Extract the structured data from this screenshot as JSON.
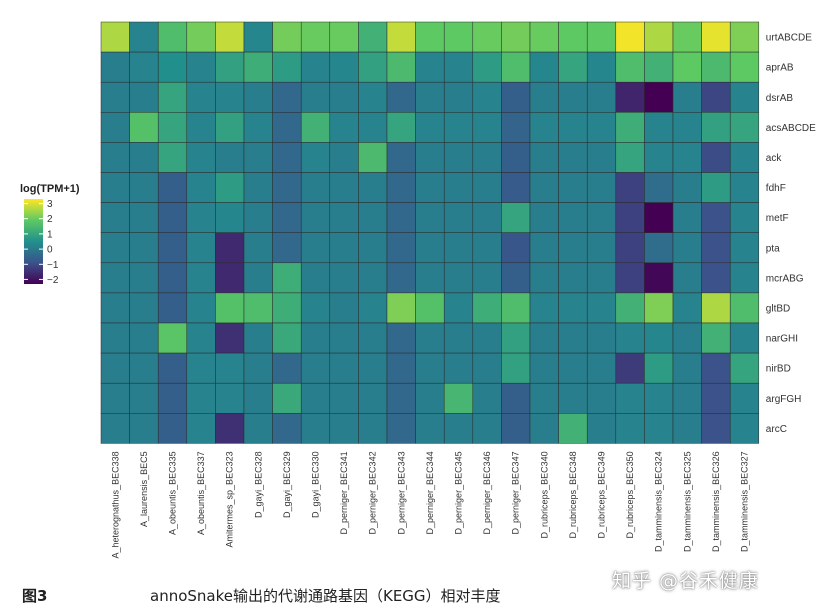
{
  "chart_data": {
    "type": "heatmap",
    "legend": {
      "title": "log(TPM+1)",
      "ticks": [
        3,
        2,
        1,
        0,
        -1,
        -2
      ],
      "tick_labels": [
        "3",
        "2",
        "1",
        "0",
        "−1",
        "−2"
      ],
      "range": [
        -2.3,
        3.3
      ],
      "colormap": "viridis"
    },
    "rows": [
      "urtABCDE",
      "aprAB",
      "dsrAB",
      "acsABCDE",
      "ack",
      "fdhF",
      "metF",
      "pta",
      "mcrABG",
      "gltBD",
      "narGHI",
      "nirBD",
      "argFGH",
      "arcC"
    ],
    "columns": [
      "A_heterognathus_BEC338",
      "A_laurensis_BEC5",
      "A_obeuntis_BEC335",
      "A_obeuntis_BEC337",
      "Amitermes_sp_BEC323",
      "D_gayi_BEC328",
      "D_gayi_BEC329",
      "D_gayi_BEC330",
      "D_perniger_BEC341",
      "D_perniger_BEC342",
      "D_perniger_BEC343",
      "D_perniger_BEC344",
      "D_perniger_BEC345",
      "D_perniger_BEC346",
      "D_perniger_BEC347",
      "D_rubriceps_BEC340",
      "D_rubriceps_BEC348",
      "D_rubriceps_BEC349",
      "D_rubriceps_BEC350",
      "D_tamminensis_BEC324",
      "D_tamminensis_BEC325",
      "D_tamminensis_BEC326",
      "D_tamminensis_BEC327"
    ],
    "values": [
      [
        2.6,
        0.2,
        1.6,
        2.1,
        2.8,
        0.3,
        2.1,
        2.0,
        2.0,
        1.3,
        2.8,
        1.9,
        1.9,
        2.0,
        2.1,
        2.0,
        1.9,
        1.9,
        3.2,
        2.6,
        2.0,
        3.1,
        2.2
      ],
      [
        0.1,
        0.2,
        0.5,
        0.2,
        0.9,
        1.2,
        0.8,
        0.2,
        0.3,
        0.9,
        1.5,
        0.2,
        0.2,
        0.8,
        1.6,
        0.3,
        1.0,
        0.3,
        1.6,
        1.3,
        1.9,
        1.5,
        1.9
      ],
      [
        0.1,
        0.1,
        1.0,
        0.2,
        0.2,
        0.1,
        -0.4,
        0.1,
        0.1,
        0.2,
        -0.4,
        0.1,
        0.1,
        0.2,
        -0.6,
        0.1,
        0.1,
        0.1,
        -1.7,
        -2.3,
        0.1,
        -1.1,
        0.2
      ],
      [
        0.1,
        1.7,
        1.0,
        0.2,
        0.9,
        0.2,
        -0.4,
        1.3,
        0.2,
        0.2,
        1.0,
        0.2,
        0.2,
        0.2,
        -0.5,
        0.2,
        0.2,
        0.2,
        1.2,
        0.2,
        0.2,
        0.9,
        1.0
      ],
      [
        0.1,
        0.1,
        1.0,
        0.2,
        0.1,
        0.1,
        -0.4,
        0.2,
        0.1,
        1.5,
        -0.4,
        0.1,
        0.1,
        0.1,
        -0.6,
        0.1,
        0.1,
        0.1,
        1.0,
        0.2,
        0.2,
        -1.0,
        0.2
      ],
      [
        0.1,
        0.1,
        -0.6,
        0.2,
        0.8,
        0.1,
        -0.4,
        0.1,
        0.1,
        0.1,
        -0.4,
        0.1,
        0.1,
        0.1,
        -0.7,
        0.1,
        0.1,
        0.1,
        -1.2,
        -0.3,
        0.1,
        0.8,
        0.2
      ],
      [
        0.1,
        0.1,
        -0.6,
        0.2,
        0.3,
        0.1,
        -0.4,
        0.1,
        0.1,
        0.1,
        -0.4,
        0.1,
        0.1,
        0.1,
        1.0,
        0.1,
        0.1,
        0.1,
        -1.2,
        -2.3,
        0.1,
        -0.9,
        0.2
      ],
      [
        0.1,
        0.1,
        -0.6,
        0.2,
        -1.6,
        0.1,
        -0.4,
        0.1,
        0.1,
        0.1,
        -0.4,
        0.1,
        0.1,
        0.1,
        -0.8,
        0.1,
        0.1,
        0.1,
        -1.2,
        -0.3,
        0.1,
        -0.9,
        0.2
      ],
      [
        0.1,
        0.1,
        -0.6,
        0.2,
        -1.6,
        0.1,
        1.2,
        0.1,
        0.1,
        0.1,
        -0.4,
        0.1,
        0.1,
        0.1,
        -0.6,
        0.1,
        0.1,
        0.1,
        -1.2,
        -2.2,
        0.1,
        -0.9,
        0.2
      ],
      [
        0.1,
        0.1,
        -0.6,
        0.2,
        1.7,
        1.6,
        1.2,
        0.2,
        0.1,
        0.2,
        2.2,
        1.7,
        0.2,
        1.2,
        1.6,
        0.2,
        0.2,
        0.2,
        1.3,
        2.2,
        0.2,
        2.6,
        1.6
      ],
      [
        0.1,
        0.1,
        1.8,
        0.2,
        -1.5,
        0.1,
        1.1,
        0.1,
        0.1,
        0.1,
        -0.4,
        0.1,
        0.1,
        0.1,
        0.9,
        0.1,
        0.1,
        0.1,
        0.2,
        0.3,
        0.1,
        1.3,
        0.2
      ],
      [
        0.1,
        0.1,
        -0.6,
        0.2,
        0.2,
        0.1,
        -0.4,
        0.1,
        0.1,
        0.1,
        -0.4,
        0.1,
        0.1,
        0.1,
        0.9,
        0.1,
        0.1,
        0.1,
        -1.3,
        0.8,
        0.1,
        -0.9,
        1.0
      ],
      [
        0.1,
        0.1,
        -0.6,
        0.2,
        0.2,
        0.1,
        1.1,
        0.1,
        0.1,
        0.1,
        -0.4,
        0.1,
        1.4,
        0.1,
        -0.6,
        0.1,
        0.1,
        0.1,
        0.2,
        0.2,
        0.1,
        -0.9,
        0.2
      ],
      [
        0.1,
        0.1,
        -0.6,
        0.2,
        -1.5,
        0.1,
        -0.4,
        0.1,
        0.1,
        0.1,
        -0.4,
        0.1,
        0.1,
        0.1,
        -0.6,
        0.1,
        1.3,
        0.1,
        0.2,
        0.2,
        0.1,
        -0.9,
        0.2
      ]
    ]
  },
  "caption": {
    "label": "图3",
    "text": "annoSnake输出的代谢通路基因（KEGG）相对丰度"
  },
  "watermark": "知乎 @谷禾健康"
}
